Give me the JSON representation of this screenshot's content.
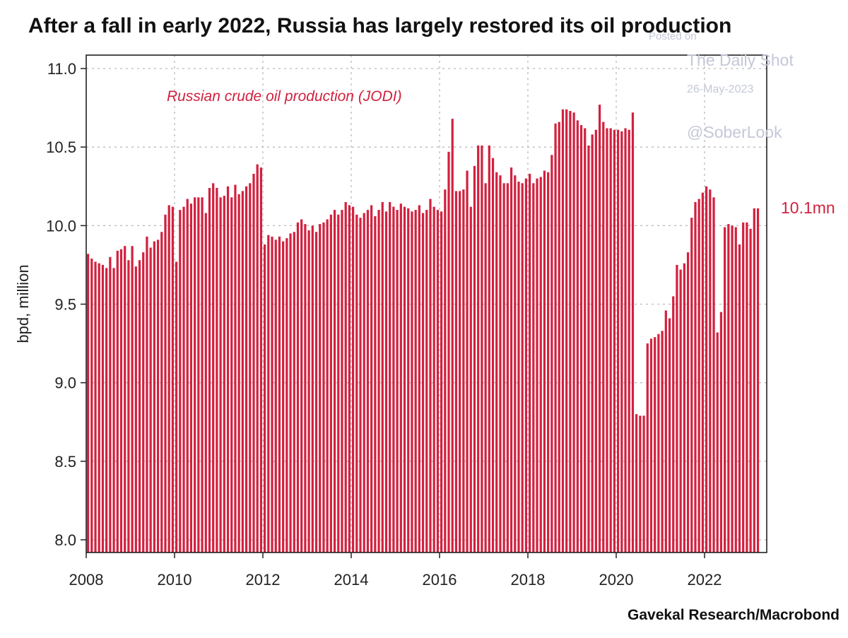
{
  "title": "After a fall in early 2022, Russia has largely restored its oil production",
  "source": "Gavekal Research/Macrobond",
  "watermark": {
    "posted": "Posted on",
    "site": "The Daily Shot",
    "date": "26-May-2023",
    "handle": "@SoberLook"
  },
  "colors": {
    "bar": "#d2213f",
    "text": "#111111",
    "grid": "#bbbbbb"
  },
  "chart_data": {
    "type": "bar",
    "ylabel": "bpd, million",
    "ylim": [
      8.0,
      11.0
    ],
    "yticks": [
      8.0,
      8.5,
      9.0,
      9.5,
      10.0,
      10.5,
      11.0
    ],
    "ytick_labels": [
      "8.0",
      "8.5",
      "9.0",
      "9.5",
      "10.0",
      "10.5",
      "11.0"
    ],
    "xticks": [
      "2008",
      "2010",
      "2012",
      "2014",
      "2016",
      "2018",
      "2020",
      "2022"
    ],
    "x_start": "2008-01",
    "x_end": "2023-03",
    "grid": true,
    "series_label": "Russian crude oil production (JODI)",
    "last_value_label": "10.1mn",
    "series": [
      {
        "name": "Russian crude oil production (JODI)",
        "values": [
          9.82,
          9.79,
          9.77,
          9.76,
          9.75,
          9.73,
          9.8,
          9.73,
          9.84,
          9.85,
          9.87,
          9.78,
          9.87,
          9.74,
          9.78,
          9.83,
          9.93,
          9.86,
          9.9,
          9.91,
          9.96,
          10.07,
          10.13,
          10.12,
          9.77,
          10.1,
          10.12,
          10.17,
          10.14,
          10.18,
          10.18,
          10.18,
          10.08,
          10.24,
          10.27,
          10.24,
          10.18,
          10.19,
          10.25,
          10.18,
          10.26,
          10.2,
          10.22,
          10.25,
          10.27,
          10.33,
          10.39,
          10.37,
          9.88,
          9.94,
          9.93,
          9.91,
          9.93,
          9.9,
          9.92,
          9.95,
          9.96,
          10.02,
          10.04,
          10.01,
          9.97,
          10.0,
          9.96,
          10.01,
          10.02,
          10.04,
          10.07,
          10.1,
          10.07,
          10.1,
          10.15,
          10.13,
          10.12,
          10.07,
          10.05,
          10.08,
          10.1,
          10.13,
          10.06,
          10.1,
          10.15,
          10.09,
          10.15,
          10.12,
          10.1,
          10.14,
          10.12,
          10.11,
          10.09,
          10.1,
          10.13,
          10.08,
          10.1,
          10.17,
          10.12,
          10.1,
          10.09,
          10.23,
          10.47,
          10.68,
          10.22,
          10.22,
          10.23,
          10.35,
          10.12,
          10.38,
          10.51,
          10.51,
          10.27,
          10.51,
          10.43,
          10.34,
          10.32,
          10.27,
          10.27,
          10.37,
          10.32,
          10.28,
          10.27,
          10.3,
          10.33,
          10.27,
          10.3,
          10.31,
          10.35,
          10.34,
          10.45,
          10.65,
          10.66,
          10.74,
          10.74,
          10.73,
          10.72,
          10.67,
          10.64,
          10.62,
          10.51,
          10.58,
          10.61,
          10.77,
          10.66,
          10.62,
          10.62,
          10.61,
          10.61,
          10.6,
          10.62,
          10.61,
          10.72,
          8.8,
          8.79,
          8.79,
          9.25,
          9.28,
          9.29,
          9.31,
          9.33,
          9.46,
          9.41,
          9.55,
          9.75,
          9.72,
          9.76,
          9.83,
          10.05,
          10.15,
          10.17,
          10.21,
          10.25,
          10.23,
          10.18,
          9.32,
          9.45,
          9.99,
          10.01,
          10.0,
          9.99,
          9.88,
          10.02,
          10.02,
          9.98,
          10.11,
          10.11
        ]
      }
    ]
  }
}
